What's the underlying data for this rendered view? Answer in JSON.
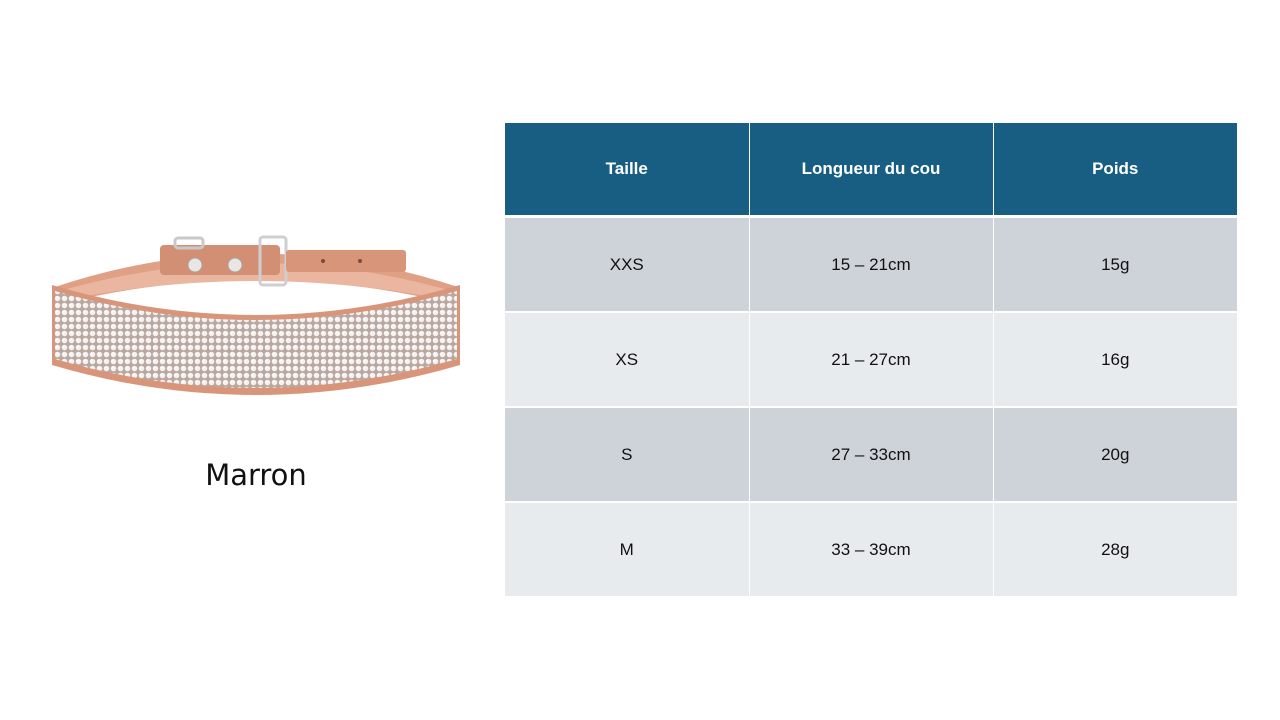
{
  "product": {
    "image": "rhinestone-collar-illustration",
    "color_name": "Marron",
    "collar_color": "#d9957a",
    "collar_inner_color": "#e8ad92"
  },
  "table": {
    "header_color": "#175e82",
    "columns": [
      "Taille",
      "Longueur du cou",
      "Poids"
    ],
    "rows": [
      [
        "XXS",
        "15 – 21cm",
        "15g"
      ],
      [
        "XS",
        "21 – 27cm",
        "16g"
      ],
      [
        "S",
        "27 – 33cm",
        "20g"
      ],
      [
        "M",
        "33 – 39cm",
        "28g"
      ]
    ]
  }
}
